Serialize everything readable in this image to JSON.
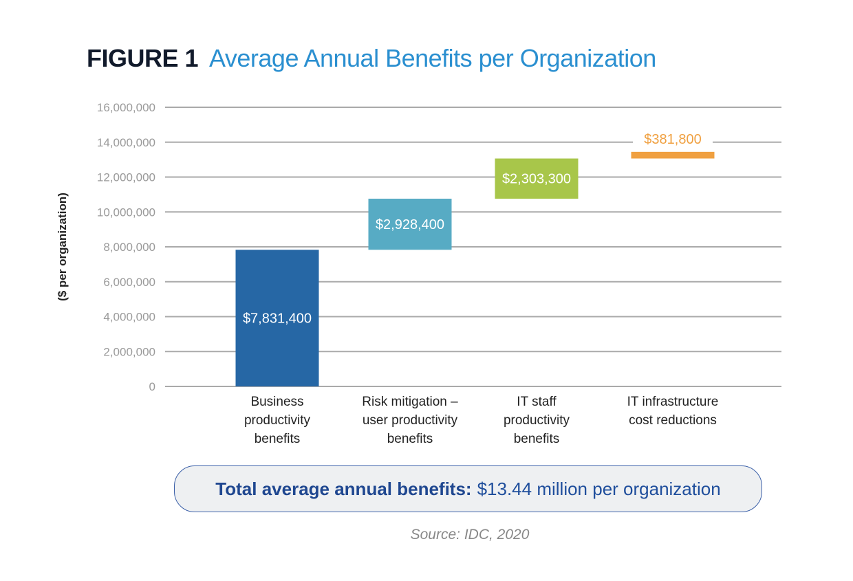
{
  "figure_label": "FIGURE 1",
  "chart_data": {
    "type": "bar",
    "subtype": "waterfall",
    "title": "Average Annual Benefits per Organization",
    "ylabel": "($ per organization)",
    "xlabel": "",
    "ylim": [
      0,
      16000000
    ],
    "yticks": [
      0,
      2000000,
      4000000,
      6000000,
      8000000,
      10000000,
      12000000,
      14000000,
      16000000
    ],
    "ytick_labels": [
      "0",
      "2,000,000",
      "4,000,000",
      "6,000,000",
      "8,000,000",
      "10,000,000",
      "12,000,000",
      "14,000,000",
      "16,000,000"
    ],
    "grid": true,
    "categories": [
      [
        "Business",
        "productivity",
        "benefits"
      ],
      [
        "Risk mitigation –",
        "user productivity",
        "benefits"
      ],
      [
        "IT staff",
        "productivity",
        "benefits"
      ],
      [
        "IT infrastructure",
        "cost reductions"
      ]
    ],
    "values": [
      7831400,
      2928400,
      2303300,
      381800
    ],
    "data_labels": [
      "$7,831,400",
      "$2,928,400",
      "$2,303,300",
      "$381,800"
    ],
    "colors": [
      "#2667a5",
      "#57abc4",
      "#a8c64a",
      "#f0a040"
    ]
  },
  "total": {
    "label": "Total average annual benefits:",
    "value": "$13.44 million per organization"
  },
  "source": "Source: IDC, 2020"
}
